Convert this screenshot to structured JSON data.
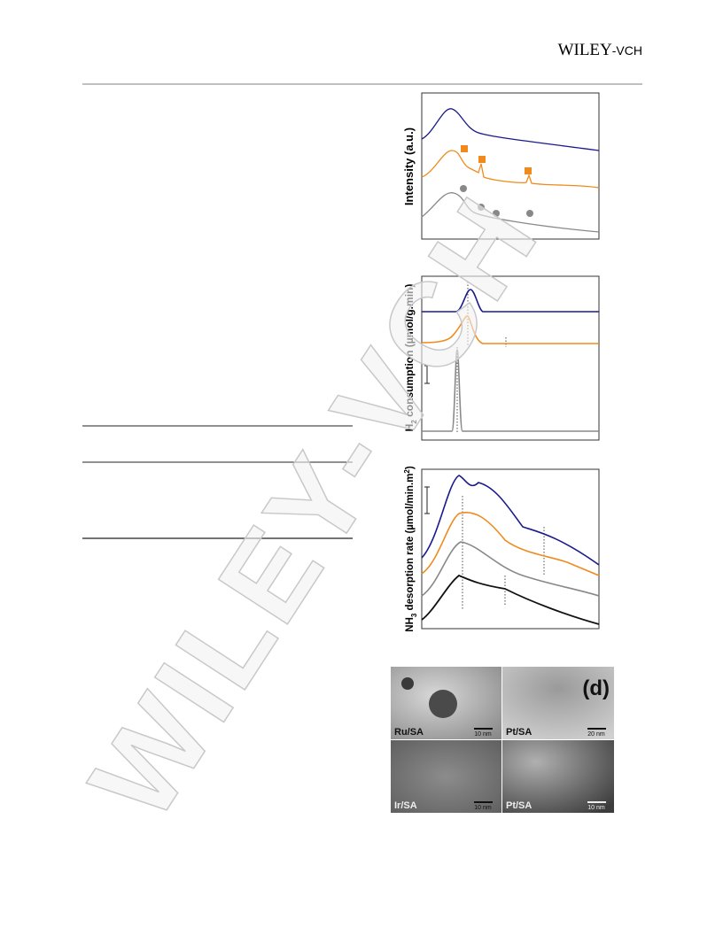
{
  "header": {
    "publisher": "WILEY",
    "publisher_suffix": "-VCH"
  },
  "figure": {
    "panel_a": {
      "y_label": "Intensity (a.u.)"
    },
    "panel_b": {
      "y_label_parts": [
        "H",
        "2",
        " consumption (µmol/g.min)"
      ]
    },
    "panel_c": {
      "y_label_parts": [
        "NH",
        "3",
        " desorption rate (µmol/min.m",
        "2",
        ")"
      ]
    },
    "panel_d": {
      "label": "(d)",
      "images": [
        {
          "name": "Ru/SA",
          "scale": "10 nm"
        },
        {
          "name": "Pt/SA",
          "scale": "20 nm"
        },
        {
          "name": "Ir/SA",
          "scale": "10 nm"
        },
        {
          "name": "Pt/SA",
          "scale": "10 nm"
        }
      ]
    }
  },
  "watermark": "WILEY-VCH"
}
